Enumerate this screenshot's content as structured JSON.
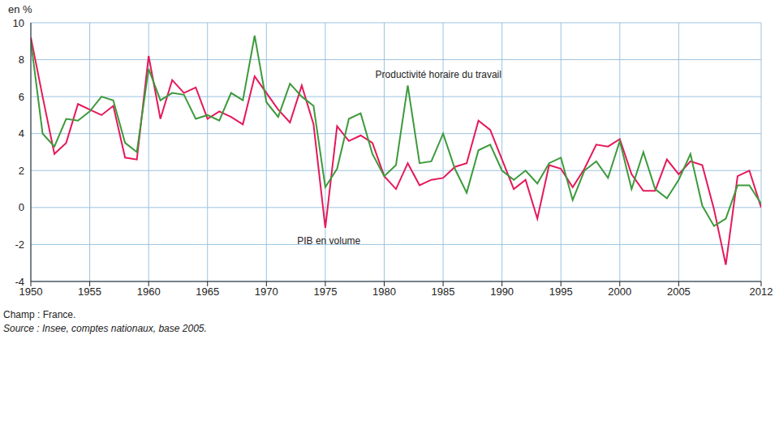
{
  "chart_data": {
    "type": "line",
    "y_label": "en %",
    "x": [
      1950,
      1951,
      1952,
      1953,
      1954,
      1955,
      1956,
      1957,
      1958,
      1959,
      1960,
      1961,
      1962,
      1963,
      1964,
      1965,
      1966,
      1967,
      1968,
      1969,
      1970,
      1971,
      1972,
      1973,
      1974,
      1975,
      1976,
      1977,
      1978,
      1979,
      1980,
      1981,
      1982,
      1983,
      1984,
      1985,
      1986,
      1987,
      1988,
      1989,
      1990,
      1991,
      1992,
      1993,
      1994,
      1995,
      1996,
      1997,
      1998,
      1999,
      2000,
      2001,
      2002,
      2003,
      2004,
      2005,
      2006,
      2007,
      2008,
      2009,
      2010,
      2011,
      2012
    ],
    "series": [
      {
        "name": "PIB en volume",
        "color": "#e5195a",
        "values": [
          9.2,
          6.0,
          2.9,
          3.5,
          5.6,
          5.3,
          5.0,
          5.5,
          2.7,
          2.6,
          8.2,
          4.8,
          6.9,
          6.2,
          6.5,
          4.8,
          5.2,
          4.9,
          4.5,
          7.1,
          6.2,
          5.3,
          4.6,
          6.6,
          4.5,
          -1.1,
          4.4,
          3.6,
          3.9,
          3.5,
          1.7,
          1.0,
          2.4,
          1.2,
          1.5,
          1.6,
          2.2,
          2.4,
          4.7,
          4.2,
          2.6,
          1.0,
          1.5,
          -0.6,
          2.3,
          2.1,
          1.1,
          2.1,
          3.4,
          3.3,
          3.7,
          1.8,
          0.9,
          0.9,
          2.6,
          1.8,
          2.5,
          2.3,
          -0.1,
          -3.1,
          1.7,
          2.0,
          0.0
        ]
      },
      {
        "name": "Productivité horaire du travail",
        "color": "#3d9a3c",
        "values": [
          9.0,
          4.0,
          3.3,
          4.8,
          4.7,
          5.2,
          6.0,
          5.8,
          3.5,
          3.0,
          7.5,
          5.8,
          6.2,
          6.1,
          4.8,
          5.0,
          4.7,
          6.2,
          5.8,
          9.3,
          5.7,
          4.9,
          6.7,
          6.0,
          5.5,
          1.1,
          2.1,
          4.8,
          5.1,
          2.9,
          1.7,
          2.3,
          6.6,
          2.4,
          2.5,
          4.0,
          2.1,
          0.8,
          3.1,
          3.4,
          2.0,
          1.5,
          2.0,
          1.3,
          2.4,
          2.7,
          0.4,
          2.0,
          2.5,
          1.6,
          3.6,
          1.0,
          3.0,
          1.0,
          0.5,
          1.5,
          2.9,
          0.1,
          -1.0,
          -0.6,
          1.2,
          1.2,
          0.2
        ]
      }
    ],
    "xlim": [
      1950,
      2012
    ],
    "xticks": [
      1950,
      1955,
      1960,
      1965,
      1970,
      1975,
      1980,
      1985,
      1990,
      1995,
      2000,
      2005,
      2012
    ],
    "ylim": [
      -4,
      10
    ],
    "yticks": [
      -4,
      -2,
      0,
      2,
      4,
      6,
      8,
      10
    ],
    "grid": true,
    "legend": false,
    "annotations": [
      {
        "text": "Productivité horaire du travail",
        "x": 1984.6,
        "y": 7.2
      },
      {
        "text": "PIB en volume",
        "x": 1975.3,
        "y": -1.8
      }
    ],
    "footnotes": [
      "Champ : France.",
      "Source : Insee, comptes nationaux, base 2005."
    ]
  }
}
